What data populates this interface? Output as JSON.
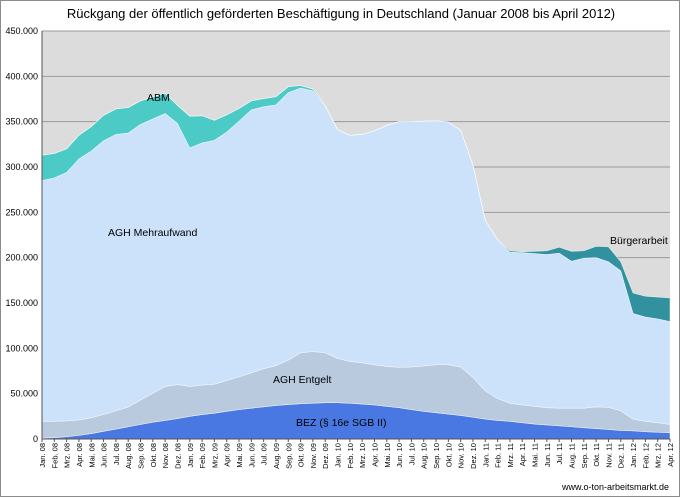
{
  "chart_data": {
    "type": "area",
    "stacked": true,
    "title": "Rückgang der öffentlich geförderten Beschäftigung in Deutschland (Januar 2008 bis April 2012)",
    "xlabel": "",
    "ylabel": "",
    "ylim": [
      0,
      450000
    ],
    "yticks": [
      0,
      50000,
      100000,
      150000,
      200000,
      250000,
      300000,
      350000,
      400000,
      450000
    ],
    "ytick_labels": [
      "0",
      "50.000",
      "100.000",
      "150.000",
      "200.000",
      "250.000",
      "300.000",
      "350.000",
      "400.000",
      "450.000"
    ],
    "grid": true,
    "background": "#dcdcdc",
    "x": [
      "Jan. 08",
      "Feb. 08",
      "Mrz. 08",
      "Apr. 08",
      "Mai. 08",
      "Jun. 08",
      "Jul. 08",
      "Aug. 08",
      "Sep. 08",
      "Okt. 08",
      "Nov. 08",
      "Dez. 08",
      "Jan. 09",
      "Feb. 09",
      "Mrz. 09",
      "Apr. 09",
      "Mai. 09",
      "Jun. 09",
      "Jul. 09",
      "Aug. 09",
      "Sep. 09",
      "Okt. 09",
      "Nov. 09",
      "Dez. 09",
      "Jan. 10",
      "Feb. 10",
      "Mrz. 10",
      "Apr. 10",
      "Mai. 10",
      "Jun. 10",
      "Jul. 10",
      "Aug. 10",
      "Sep. 10",
      "Okt. 10",
      "Nov. 10",
      "Dez. 10",
      "Jan. 11",
      "Feb. 11",
      "Mrz. 11",
      "Apr. 11",
      "Mai. 11",
      "Jun. 11",
      "Jul. 11",
      "Aug. 11",
      "Sep. 11",
      "Okt. 11",
      "Nov. 11",
      "Dez. 11",
      "Jan. 12",
      "Feb. 12",
      "Mrz. 12",
      "Apr. 12"
    ],
    "series": [
      {
        "name": "BEZ (§ 16e SGB II)",
        "color": "#4a78e2",
        "values": [
          1000,
          1500,
          2500,
          4000,
          6000,
          8500,
          11000,
          13500,
          16000,
          18500,
          20500,
          22500,
          25000,
          27000,
          28500,
          30500,
          32500,
          34000,
          35500,
          37000,
          38000,
          39000,
          39500,
          40000,
          40000,
          39500,
          38500,
          37500,
          36000,
          34500,
          32500,
          30500,
          29000,
          27500,
          26000,
          24000,
          22000,
          20500,
          19500,
          18000,
          16500,
          15500,
          14500,
          13500,
          12500,
          11500,
          10500,
          9500,
          9000,
          8000,
          7500,
          7000
        ]
      },
      {
        "name": "AGH Entgelt",
        "color": "#b9c9de",
        "values": [
          18500,
          18000,
          17500,
          17000,
          17500,
          18500,
          20000,
          22000,
          27000,
          32000,
          37500,
          37500,
          33000,
          32500,
          32000,
          34000,
          36000,
          39000,
          42000,
          44000,
          49000,
          56000,
          57000,
          55000,
          49000,
          46000,
          45500,
          44500,
          44000,
          44500,
          47000,
          50000,
          53000,
          54500,
          53500,
          44000,
          31000,
          24000,
          20000,
          19500,
          19500,
          19000,
          19500,
          20500,
          21500,
          24000,
          24500,
          21500,
          13000,
          11500,
          10500,
          9000
        ]
      },
      {
        "name": "AGH Mehraufwand",
        "color": "#cce2fa",
        "values": [
          265500,
          268500,
          274000,
          288000,
          294000,
          302000,
          305000,
          302000,
          304000,
          302500,
          301000,
          288000,
          263000,
          267000,
          269000,
          274000,
          282000,
          290000,
          289000,
          287500,
          295000,
          292000,
          287500,
          272000,
          252000,
          249500,
          252000,
          258000,
          266000,
          271000,
          270500,
          270000,
          269000,
          267500,
          261000,
          234000,
          188000,
          175500,
          166500,
          168000,
          168500,
          169000,
          171000,
          162000,
          165500,
          164500,
          160500,
          154500,
          116500,
          115000,
          114500,
          113500
        ]
      },
      {
        "name": "ABM",
        "color": "#4ccac6",
        "values": [
          28000,
          27000,
          26000,
          26000,
          27000,
          28000,
          28000,
          28000,
          26000,
          24000,
          22500,
          20000,
          35000,
          30000,
          22000,
          19000,
          14000,
          10000,
          9000,
          9000,
          6500,
          3000,
          2000,
          1000,
          500,
          0,
          0,
          0,
          0,
          0,
          0,
          0,
          0,
          0,
          0,
          0,
          0,
          0,
          0,
          0,
          0,
          0,
          0,
          0,
          0,
          0,
          0,
          0,
          0,
          0,
          0,
          0
        ]
      },
      {
        "name": "Bürgerarbeit",
        "color": "#31919f",
        "values": [
          0,
          0,
          0,
          0,
          0,
          0,
          0,
          0,
          0,
          0,
          0,
          0,
          0,
          0,
          0,
          0,
          0,
          0,
          0,
          0,
          0,
          0,
          0,
          0,
          0,
          0,
          0,
          0,
          0,
          0,
          0,
          0,
          0,
          0,
          0,
          0,
          0,
          0,
          1500,
          1000,
          2500,
          4000,
          6500,
          11000,
          8000,
          12500,
          16500,
          10000,
          22500,
          23000,
          24000,
          26000
        ]
      }
    ]
  },
  "footer": {
    "credit": "www.o-ton-arbeitsmarkt.de"
  }
}
